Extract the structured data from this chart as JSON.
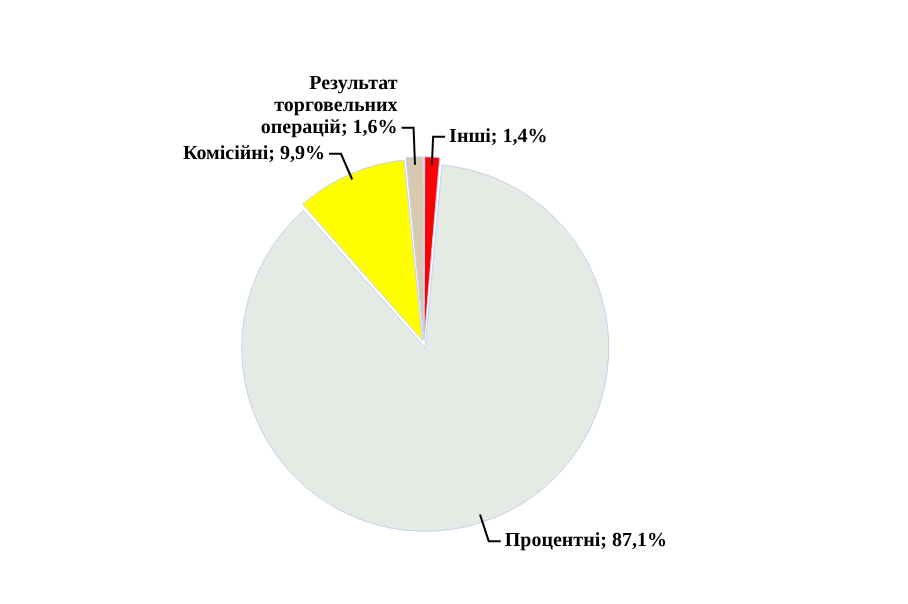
{
  "chart_data": {
    "type": "pie",
    "categories": [
      "Інші",
      "Процентні",
      "Комісійні",
      "Результат торговельних операцій"
    ],
    "values": [
      1.4,
      87.1,
      9.9,
      1.6
    ],
    "value_labels": [
      "1,4%",
      "87,1%",
      "9,9%",
      "1,6%"
    ],
    "colors": [
      "#ff0000",
      "#e4ebe4",
      "#ffff00",
      "#d8c8b0"
    ],
    "legend": false
  }
}
